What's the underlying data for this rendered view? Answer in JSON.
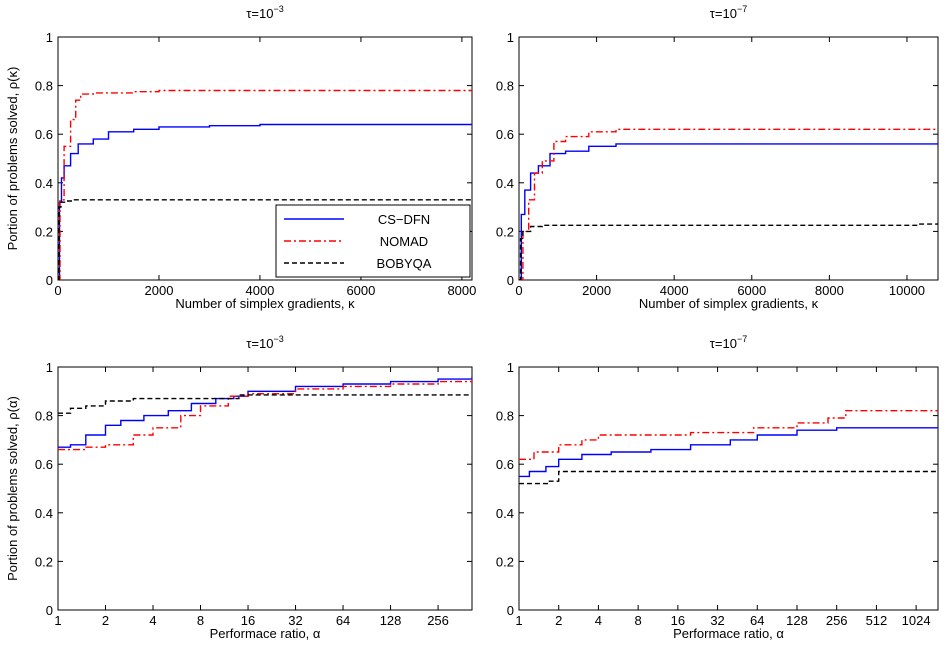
{
  "legend": [
    "CS−DFN",
    "NOMAD",
    "BOBYQA"
  ],
  "colors": {
    "CS-DFN": "#0000ff",
    "NOMAD": "#ff0000",
    "BOBYQA": "#000000"
  },
  "chart_data": [
    {
      "type": "line",
      "title_base": "τ=10",
      "title_exp": "−3",
      "xlabel": "Number of simplex gradients, κ",
      "ylabel": "Portion of problems solved, ρ(κ)",
      "xscale": "linear",
      "xlim": [
        0,
        8200
      ],
      "ylim": [
        0,
        1
      ],
      "xticks": [
        0,
        2000,
        4000,
        6000,
        8000
      ],
      "xticklabels": [
        "0",
        "2000",
        "4000",
        "6000",
        "8000"
      ],
      "yticks": [
        0,
        0.2,
        0.4,
        0.6,
        0.8,
        1
      ],
      "yticklabels": [
        "0",
        "0.2",
        "0.4",
        "0.6",
        "0.8",
        "1"
      ],
      "legend_position": "lower-right",
      "series": [
        {
          "name": "CS−DFN",
          "style": "solid",
          "points": [
            [
              0,
              0
            ],
            [
              30,
              0.32
            ],
            [
              70,
              0.42
            ],
            [
              120,
              0.47
            ],
            [
              250,
              0.52
            ],
            [
              400,
              0.56
            ],
            [
              700,
              0.58
            ],
            [
              1000,
              0.61
            ],
            [
              1500,
              0.62
            ],
            [
              2000,
              0.63
            ],
            [
              3000,
              0.635
            ],
            [
              4000,
              0.64
            ],
            [
              6000,
              0.64
            ],
            [
              8200,
              0.64
            ]
          ]
        },
        {
          "name": "NOMAD",
          "style": "dashdot",
          "points": [
            [
              0,
              0
            ],
            [
              40,
              0.33
            ],
            [
              120,
              0.55
            ],
            [
              250,
              0.66
            ],
            [
              350,
              0.74
            ],
            [
              450,
              0.765
            ],
            [
              700,
              0.77
            ],
            [
              1500,
              0.775
            ],
            [
              2000,
              0.78
            ],
            [
              8200,
              0.78
            ]
          ]
        },
        {
          "name": "BOBYQA",
          "style": "dashed",
          "points": [
            [
              0,
              0
            ],
            [
              20,
              0.3
            ],
            [
              60,
              0.32
            ],
            [
              150,
              0.325
            ],
            [
              300,
              0.33
            ],
            [
              8200,
              0.335
            ]
          ]
        }
      ]
    },
    {
      "type": "line",
      "title_base": "τ=10",
      "title_exp": "−7",
      "xlabel": "Number of simplex gradients, κ",
      "ylabel": "",
      "xscale": "linear",
      "xlim": [
        0,
        10800
      ],
      "ylim": [
        0,
        1
      ],
      "xticks": [
        0,
        2000,
        4000,
        6000,
        8000,
        10000
      ],
      "xticklabels": [
        "0",
        "2000",
        "4000",
        "6000",
        "8000",
        "10000"
      ],
      "yticks": [
        0,
        0.2,
        0.4,
        0.6,
        0.8,
        1
      ],
      "yticklabels": [
        "0",
        "0.2",
        "0.4",
        "0.6",
        "0.8",
        "1"
      ],
      "series": [
        {
          "name": "CS−DFN",
          "style": "solid",
          "points": [
            [
              0,
              0
            ],
            [
              60,
              0.27
            ],
            [
              150,
              0.37
            ],
            [
              300,
              0.44
            ],
            [
              500,
              0.47
            ],
            [
              800,
              0.52
            ],
            [
              1200,
              0.53
            ],
            [
              1800,
              0.55
            ],
            [
              2500,
              0.56
            ],
            [
              4000,
              0.56
            ],
            [
              10800,
              0.565
            ]
          ]
        },
        {
          "name": "NOMAD",
          "style": "dashdot",
          "points": [
            [
              0,
              0
            ],
            [
              100,
              0.2
            ],
            [
              250,
              0.33
            ],
            [
              400,
              0.44
            ],
            [
              600,
              0.49
            ],
            [
              900,
              0.57
            ],
            [
              1200,
              0.59
            ],
            [
              1800,
              0.61
            ],
            [
              2500,
              0.62
            ],
            [
              10800,
              0.62
            ]
          ]
        },
        {
          "name": "BOBYQA",
          "style": "dashed",
          "points": [
            [
              0,
              0
            ],
            [
              40,
              0.17
            ],
            [
              100,
              0.2
            ],
            [
              300,
              0.22
            ],
            [
              600,
              0.225
            ],
            [
              10000,
              0.225
            ],
            [
              10300,
              0.23
            ],
            [
              10800,
              0.235
            ]
          ]
        }
      ]
    },
    {
      "type": "line",
      "title_base": "τ=10",
      "title_exp": "−3",
      "xlabel": "Performace ratio, α",
      "ylabel": "Portion of problems solved, ρ(α)",
      "xscale": "log2",
      "xlim": [
        1,
        420
      ],
      "ylim": [
        0,
        1
      ],
      "xticks": [
        1,
        2,
        4,
        8,
        16,
        32,
        64,
        128,
        256
      ],
      "xticklabels": [
        "1",
        "2",
        "4",
        "8",
        "16",
        "32",
        "64",
        "128",
        "256"
      ],
      "yticks": [
        0,
        0.2,
        0.4,
        0.6,
        0.8,
        1
      ],
      "yticklabels": [
        "0",
        "0.2",
        "0.4",
        "0.6",
        "0.8",
        "1"
      ],
      "series": [
        {
          "name": "CS−DFN",
          "style": "solid",
          "points": [
            [
              1,
              0.67
            ],
            [
              1.2,
              0.68
            ],
            [
              1.5,
              0.72
            ],
            [
              2,
              0.76
            ],
            [
              2.5,
              0.78
            ],
            [
              3.5,
              0.8
            ],
            [
              5,
              0.82
            ],
            [
              7,
              0.85
            ],
            [
              10,
              0.87
            ],
            [
              13,
              0.88
            ],
            [
              16,
              0.9
            ],
            [
              32,
              0.92
            ],
            [
              64,
              0.93
            ],
            [
              128,
              0.94
            ],
            [
              256,
              0.95
            ],
            [
              420,
              0.96
            ]
          ]
        },
        {
          "name": "NOMAD",
          "style": "dashdot",
          "points": [
            [
              1,
              0.66
            ],
            [
              1.5,
              0.67
            ],
            [
              2,
              0.68
            ],
            [
              3,
              0.72
            ],
            [
              4,
              0.75
            ],
            [
              6,
              0.8
            ],
            [
              8,
              0.84
            ],
            [
              12,
              0.88
            ],
            [
              16,
              0.89
            ],
            [
              32,
              0.91
            ],
            [
              64,
              0.92
            ],
            [
              128,
              0.93
            ],
            [
              256,
              0.94
            ],
            [
              420,
              0.95
            ]
          ]
        },
        {
          "name": "BOBYQA",
          "style": "dashed",
          "points": [
            [
              1,
              0.81
            ],
            [
              1.2,
              0.83
            ],
            [
              1.5,
              0.84
            ],
            [
              2,
              0.86
            ],
            [
              3,
              0.87
            ],
            [
              6,
              0.87
            ],
            [
              10,
              0.87
            ],
            [
              14,
              0.885
            ],
            [
              420,
              0.885
            ]
          ]
        }
      ]
    },
    {
      "type": "line",
      "title_base": "τ=10",
      "title_exp": "−7",
      "xlabel": "Performace ratio, α",
      "ylabel": "",
      "xscale": "log2",
      "xlim": [
        1,
        1500
      ],
      "ylim": [
        0,
        1
      ],
      "xticks": [
        1,
        2,
        4,
        8,
        16,
        32,
        64,
        128,
        256,
        512,
        1024
      ],
      "xticklabels": [
        "1",
        "2",
        "4",
        "8",
        "16",
        "32",
        "64",
        "128",
        "256",
        "512",
        "1024"
      ],
      "yticks": [
        0,
        0.2,
        0.4,
        0.6,
        0.8,
        1
      ],
      "yticklabels": [
        "0",
        "0.2",
        "0.4",
        "0.6",
        "0.8",
        "1"
      ],
      "series": [
        {
          "name": "CS−DFN",
          "style": "solid",
          "points": [
            [
              1,
              0.55
            ],
            [
              1.2,
              0.57
            ],
            [
              1.6,
              0.59
            ],
            [
              2,
              0.62
            ],
            [
              3,
              0.64
            ],
            [
              5,
              0.65
            ],
            [
              10,
              0.66
            ],
            [
              20,
              0.68
            ],
            [
              40,
              0.7
            ],
            [
              64,
              0.72
            ],
            [
              128,
              0.74
            ],
            [
              256,
              0.75
            ],
            [
              1500,
              0.75
            ]
          ]
        },
        {
          "name": "NOMAD",
          "style": "dashdot",
          "points": [
            [
              1,
              0.62
            ],
            [
              1.3,
              0.65
            ],
            [
              2,
              0.68
            ],
            [
              3,
              0.7
            ],
            [
              4,
              0.72
            ],
            [
              10,
              0.72
            ],
            [
              20,
              0.73
            ],
            [
              60,
              0.75
            ],
            [
              128,
              0.77
            ],
            [
              220,
              0.79
            ],
            [
              300,
              0.82
            ],
            [
              1500,
              0.82
            ]
          ]
        },
        {
          "name": "BOBYQA",
          "style": "dashed",
          "points": [
            [
              1,
              0.52
            ],
            [
              1.7,
              0.53
            ],
            [
              2,
              0.57
            ],
            [
              1500,
              0.57
            ]
          ]
        }
      ]
    }
  ]
}
